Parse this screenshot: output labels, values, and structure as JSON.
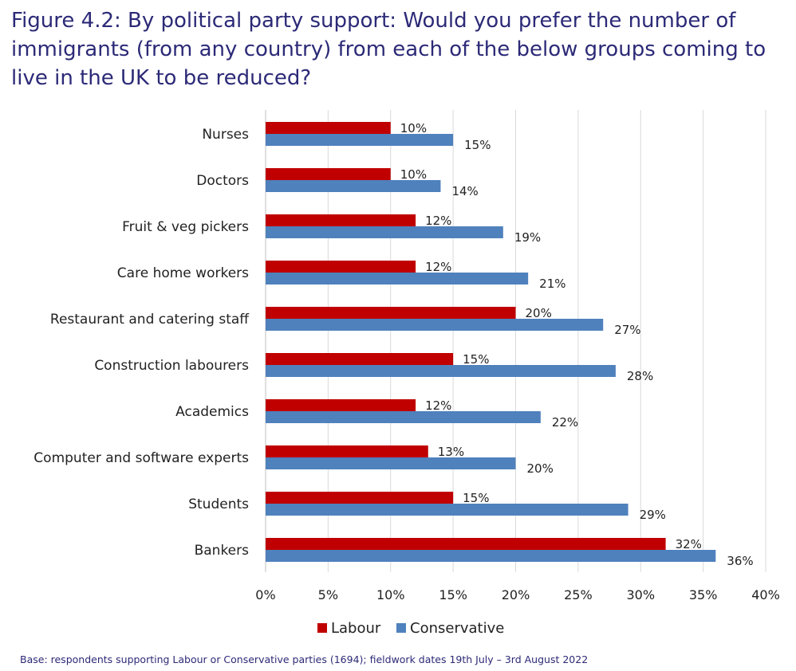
{
  "figure": {
    "title": "Figure 4.2: By political party support: Would you prefer the number of immigrants (from any country) from each of the below groups coming to live in the UK to be reduced?",
    "base_note": "Base: respondents supporting Labour or Conservative parties (1694); fieldwork dates 19th July – 3rd August 2022"
  },
  "chart_data": {
    "type": "bar",
    "orientation": "horizontal",
    "title": "Figure 4.2: By political party support: Would you prefer the number of immigrants (from any country) from each of the below groups coming to live in the UK to be reduced?",
    "categories": [
      "Nurses",
      "Doctors",
      "Fruit & veg pickers",
      "Care home workers",
      "Restaurant and catering staff",
      "Construction labourers",
      "Academics",
      "Computer and software experts",
      "Students",
      "Bankers"
    ],
    "series": [
      {
        "name": "Labour",
        "color": "#c00000",
        "values": [
          10,
          10,
          12,
          12,
          20,
          15,
          12,
          13,
          15,
          32
        ]
      },
      {
        "name": "Conservative",
        "color": "#4f81bd",
        "values": [
          15,
          14,
          19,
          21,
          27,
          28,
          22,
          20,
          29,
          36
        ]
      }
    ],
    "xlim": [
      0,
      40
    ],
    "xticks": [
      0,
      5,
      10,
      15,
      20,
      25,
      30,
      35,
      40
    ],
    "tick_suffix": "%",
    "value_suffix": "%",
    "grid": "vertical",
    "legend": "bottom-center",
    "xlabel": "",
    "ylabel": ""
  }
}
